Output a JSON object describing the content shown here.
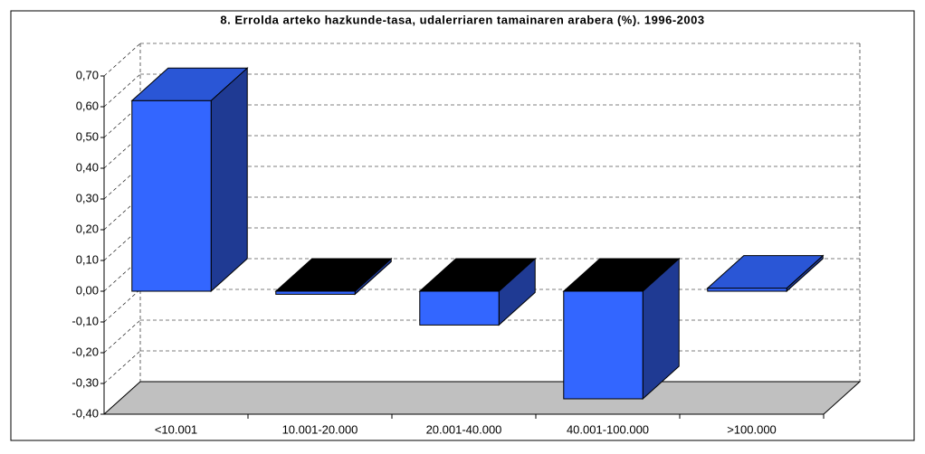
{
  "chart_data": {
    "type": "bar3d",
    "title": "8. Errolda arteko hazkunde-tasa, udalerriaren tamainaren arabera (%). 1996-2003",
    "categories": [
      "<10.001",
      "10.001-20.000",
      "20.001-40.000",
      "40.001-100.000",
      ">100.000"
    ],
    "values": [
      0.62,
      -0.01,
      -0.11,
      -0.35,
      0.01
    ],
    "color": "#3366ff",
    "ylim": [
      -0.4,
      0.7
    ],
    "yticks": [
      {
        "value": -0.4,
        "label": "-0,40"
      },
      {
        "value": -0.3,
        "label": "-0,30"
      },
      {
        "value": -0.2,
        "label": "-0,20"
      },
      {
        "value": -0.1,
        "label": "-0,10"
      },
      {
        "value": 0,
        "label": "0,00"
      },
      {
        "value": 0.1,
        "label": "0,10"
      },
      {
        "value": 0.2,
        "label": "0,20"
      },
      {
        "value": 0.3,
        "label": "0,30"
      },
      {
        "value": 0.4,
        "label": "0,40"
      },
      {
        "value": 0.5,
        "label": "0,50"
      },
      {
        "value": 0.6,
        "label": "0,60"
      },
      {
        "value": 0.7,
        "label": "0,70"
      }
    ],
    "grid": true
  }
}
